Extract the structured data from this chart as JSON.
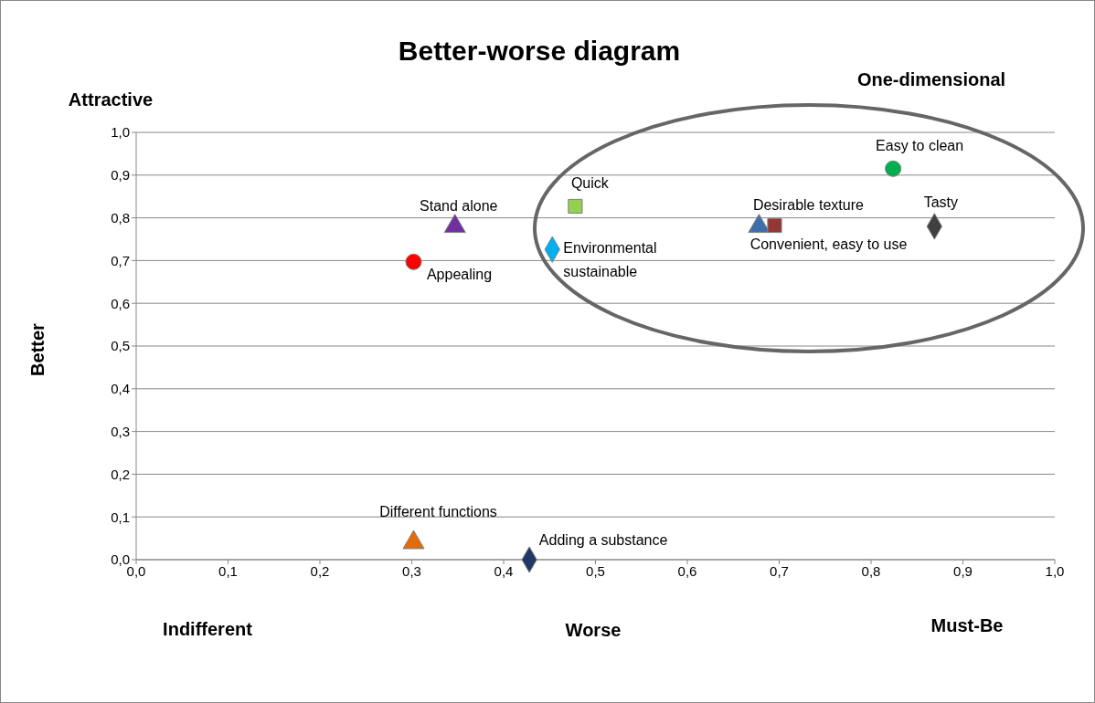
{
  "chart_data": {
    "type": "scatter",
    "title": "Better-worse diagram",
    "xlabel": "Worse",
    "ylabel": "Better",
    "annotations": [
      "Attractive",
      "One-dimensional",
      "Indifferent",
      "Must-Be"
    ],
    "xlim": [
      0,
      1
    ],
    "ylim": [
      0,
      1
    ],
    "xticks": [
      {
        "value": 0,
        "label": "0,0"
      },
      {
        "value": 0.1,
        "label": "0,1"
      },
      {
        "value": 0.2,
        "label": "0,2"
      },
      {
        "value": 0.3,
        "label": "0,3"
      },
      {
        "value": 0.4,
        "label": "0,4"
      },
      {
        "value": 0.5,
        "label": "0,5"
      },
      {
        "value": 0.6,
        "label": "0,6"
      },
      {
        "value": 0.7,
        "label": "0,7"
      },
      {
        "value": 0.8,
        "label": "0,8"
      },
      {
        "value": 0.9,
        "label": "0,9"
      },
      {
        "value": 1,
        "label": "1,0"
      }
    ],
    "yticks": [
      {
        "value": 0,
        "label": "0,0"
      },
      {
        "value": 0.1,
        "label": "0,1"
      },
      {
        "value": 0.2,
        "label": "0,2"
      },
      {
        "value": 0.3,
        "label": "0,3"
      },
      {
        "value": 0.4,
        "label": "0,4"
      },
      {
        "value": 0.5,
        "label": "0,5"
      },
      {
        "value": 0.6,
        "label": "0,6"
      },
      {
        "value": 0.7,
        "label": "0,7"
      },
      {
        "value": 0.8,
        "label": "0,8"
      },
      {
        "value": 0.9,
        "label": "0,9"
      },
      {
        "value": 1,
        "label": "1,0"
      }
    ],
    "grid": "y",
    "legend": false,
    "series": [
      {
        "name": "Easy to clean",
        "color": "#00b050",
        "marker": "circle",
        "x": [
          0.824
        ],
        "values": [
          0.915
        ]
      },
      {
        "name": "Quick",
        "color": "#92d050",
        "marker": "square",
        "x": [
          0.478
        ],
        "values": [
          0.827
        ]
      },
      {
        "name": "Stand alone",
        "color": "#7030a0",
        "marker": "triangle",
        "x": [
          0.347
        ],
        "values": [
          0.78
        ]
      },
      {
        "name": "Appealing",
        "color": "#ff0000",
        "marker": "circle",
        "x": [
          0.302
        ],
        "values": [
          0.697
        ]
      },
      {
        "name": "Environmental sustainable",
        "color": "#00b0f0",
        "marker": "diamond",
        "x": [
          0.453
        ],
        "values": [
          0.726
        ]
      },
      {
        "name": "Desirable texture",
        "color": "#3f6fa8",
        "marker": "triangle",
        "x": [
          0.678
        ],
        "values": [
          0.78
        ]
      },
      {
        "name": "Convenient, easy to use",
        "color": "#943634",
        "marker": "square",
        "x": [
          0.695
        ],
        "values": [
          0.782
        ]
      },
      {
        "name": "Tasty",
        "color": "#404040",
        "marker": "diamond",
        "x": [
          0.869
        ],
        "values": [
          0.78
        ]
      },
      {
        "name": "Different functions",
        "color": "#e36c09",
        "marker": "triangle",
        "x": [
          0.302
        ],
        "values": [
          0.04
        ]
      },
      {
        "name": "Adding a substance",
        "color": "#1f3864",
        "marker": "diamond",
        "x": [
          0.428
        ],
        "values": [
          0.0
        ]
      }
    ]
  }
}
